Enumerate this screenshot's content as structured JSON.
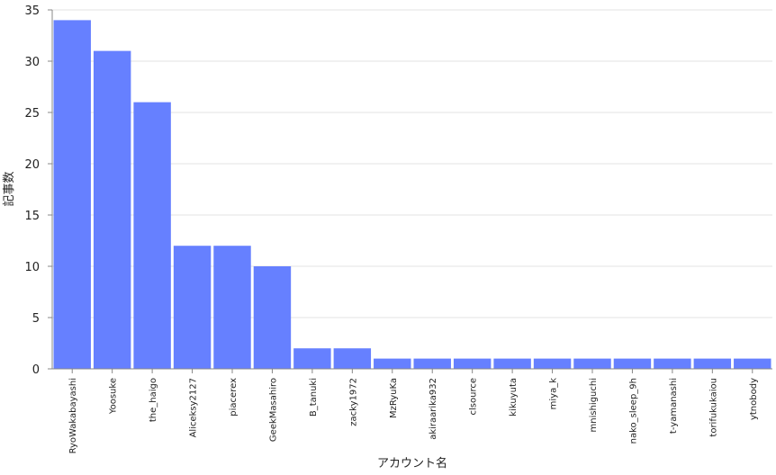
{
  "chart_data": {
    "type": "bar",
    "x_label": "アカウント名",
    "y_label": "記事数",
    "categories": [
      "RyoWakabayashi",
      "Yoosuke",
      "the_haigo",
      "Aliceksy2127",
      "piacerex",
      "GeekMasahiro",
      "B_tanuki",
      "zacky1972",
      "MzRyuKa",
      "akiraarika932",
      "clsource",
      "kikuyuta",
      "miya_k",
      "mnishiguchi",
      "nako_sleep_9h",
      "t-yamanashi",
      "torifukukaiou",
      "ytnobody"
    ],
    "values": [
      34,
      31,
      26,
      12,
      12,
      10,
      2,
      2,
      1,
      1,
      1,
      1,
      1,
      1,
      1,
      1,
      1,
      1
    ],
    "color": "#6680ff",
    "ylim": [
      0,
      35
    ],
    "yticks": [
      0,
      5,
      10,
      15,
      20,
      25,
      30,
      35
    ],
    "grid": true
  }
}
